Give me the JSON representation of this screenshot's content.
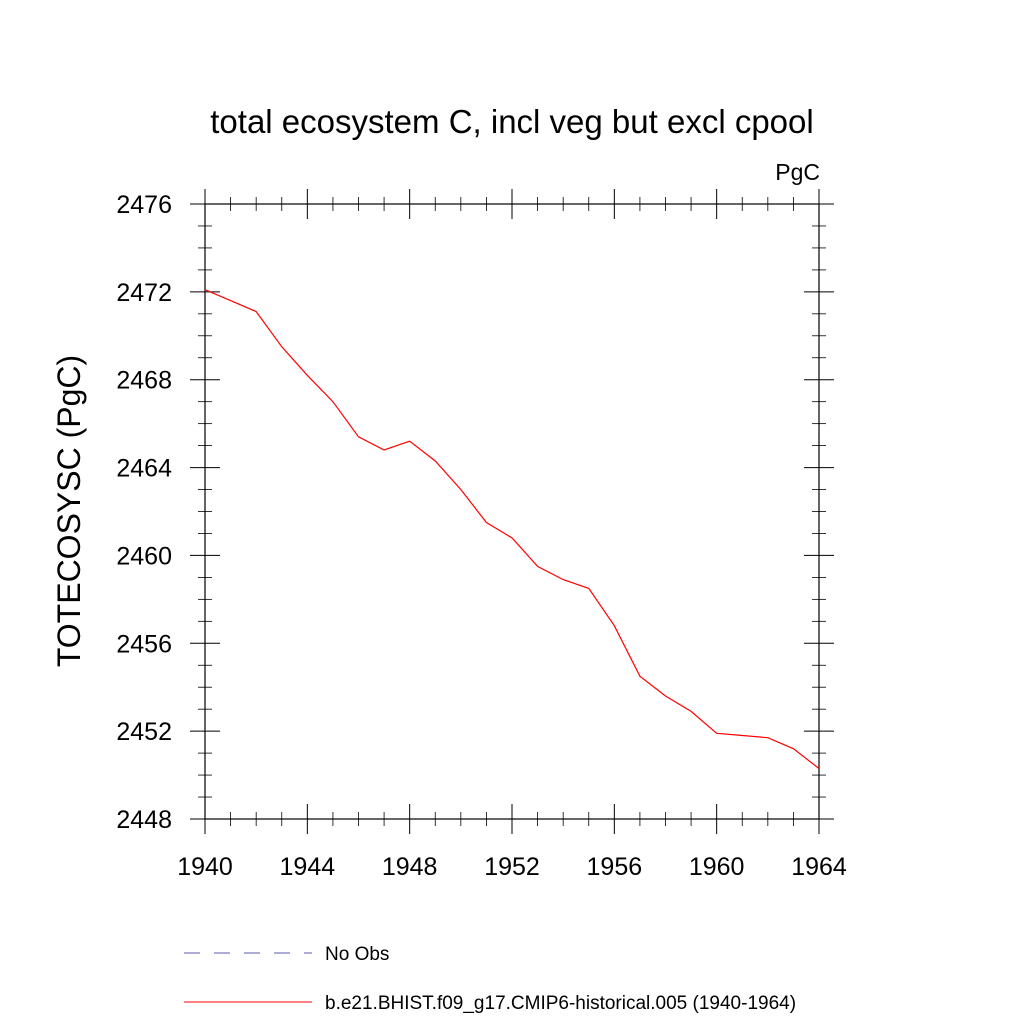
{
  "chart_data": {
    "type": "line",
    "title": "total ecosystem C, incl veg but excl cpool",
    "units_label": "PgC",
    "xlabel": "",
    "ylabel": "TOTECOSYSC  (PgC)",
    "xlim": [
      1940,
      1964
    ],
    "ylim": [
      2448,
      2476
    ],
    "x_ticks": [
      1940,
      1944,
      1948,
      1952,
      1956,
      1960,
      1964
    ],
    "y_ticks": [
      2448,
      2452,
      2456,
      2460,
      2464,
      2468,
      2472,
      2476
    ],
    "grid": false,
    "legend_position": "bottom",
    "series": [
      {
        "name": "No Obs",
        "style": "dashed",
        "color": "#5a5aaa",
        "x": [],
        "y": []
      },
      {
        "name": "b.e21.BHIST.f09_g17.CMIP6-historical.005 (1940-1964)",
        "style": "solid",
        "color": "#ff0000",
        "x": [
          1940,
          1941,
          1942,
          1943,
          1944,
          1945,
          1946,
          1947,
          1948,
          1949,
          1950,
          1951,
          1952,
          1953,
          1954,
          1955,
          1956,
          1957,
          1958,
          1959,
          1960,
          1961,
          1962,
          1963,
          1964
        ],
        "y": [
          2472.1,
          2471.6,
          2471.1,
          2469.5,
          2468.2,
          2467.0,
          2465.4,
          2464.8,
          2465.2,
          2464.3,
          2463.0,
          2461.5,
          2460.8,
          2459.5,
          2458.9,
          2458.5,
          2456.8,
          2454.5,
          2453.6,
          2452.9,
          2451.9,
          2451.8,
          2451.7,
          2451.2,
          2450.3
        ]
      }
    ]
  }
}
